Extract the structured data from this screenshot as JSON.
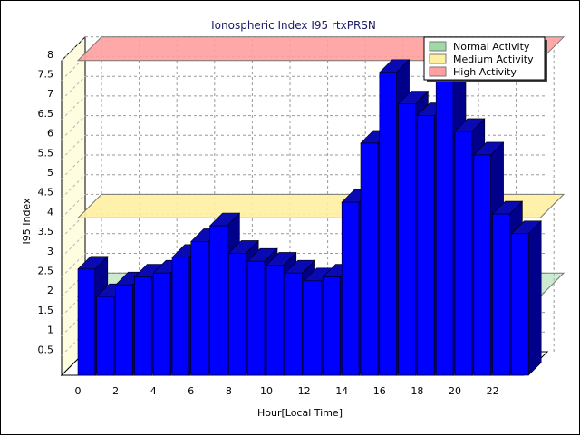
{
  "chart_data": {
    "type": "bar",
    "title": "Ionospheric Index I95 rtxPRSN",
    "xlabel": "Hour[Local Time]",
    "ylabel": "I95 Index",
    "x_tick_labels": [
      "0",
      "2",
      "4",
      "6",
      "8",
      "10",
      "12",
      "14",
      "16",
      "18",
      "20",
      "22"
    ],
    "y_tick_labels": [
      "0.5",
      "1",
      "1.5",
      "2",
      "2.5",
      "3",
      "3.5",
      "4",
      "4.5",
      "5",
      "5.5",
      "6",
      "6.5",
      "7",
      "7.5",
      "8"
    ],
    "ylim": [
      0,
      8
    ],
    "grid": true,
    "legend_position": "top-right",
    "hours": [
      0,
      1,
      2,
      3,
      4,
      5,
      6,
      7,
      8,
      9,
      10,
      11,
      12,
      13,
      14,
      15,
      16,
      17,
      18,
      19,
      20,
      21,
      22,
      23
    ],
    "values": [
      2.7,
      2.0,
      2.3,
      2.5,
      2.6,
      3.0,
      3.4,
      3.8,
      3.1,
      2.9,
      2.8,
      2.6,
      2.4,
      2.5,
      4.4,
      5.9,
      7.7,
      6.9,
      6.6,
      7.6,
      6.2,
      5.6,
      4.1,
      3.6
    ],
    "bar_color": "#0000ff",
    "bands": [
      {
        "name": "Normal Activity",
        "level": 2,
        "color": "#a0d8a8"
      },
      {
        "name": "Medium Activity",
        "level": 4,
        "color": "#fff0a0"
      },
      {
        "name": "High Activity",
        "level": 8,
        "color": "#ff9f9f"
      }
    ]
  }
}
